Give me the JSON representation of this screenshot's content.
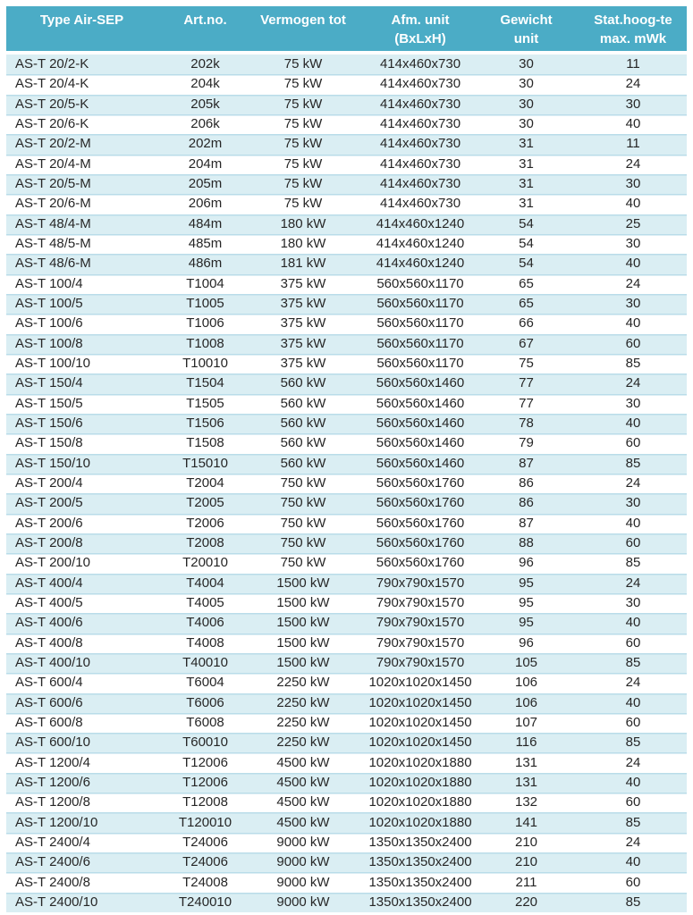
{
  "colors": {
    "header_bg": "#4BACC6",
    "header_text": "#FFFFFF",
    "row_alt_bg": "#DAEEF3",
    "row_bg": "#FFFFFF",
    "border_color": "#B9DCE9",
    "text_color": "#262626"
  },
  "table": {
    "columns": [
      {
        "key": "type",
        "label": "Type Air-SEP"
      },
      {
        "key": "artno",
        "label": "Art.no."
      },
      {
        "key": "vermogen",
        "label": "Vermogen tot"
      },
      {
        "key": "afm",
        "label": "Afm. unit\n(BxLxH)"
      },
      {
        "key": "gewicht",
        "label": "Gewicht unit"
      },
      {
        "key": "stat",
        "label": "Stat.hoog-te\nmax. mWk"
      }
    ],
    "rows": [
      [
        "AS-T 20/2-K",
        "202k",
        "75 kW",
        "414x460x730",
        "30",
        "11"
      ],
      [
        "AS-T 20/4-K",
        "204k",
        "75 kW",
        "414x460x730",
        "30",
        "24"
      ],
      [
        "AS-T 20/5-K",
        "205k",
        "75 kW",
        "414x460x730",
        "30",
        "30"
      ],
      [
        "AS-T 20/6-K",
        "206k",
        "75 kW",
        "414x460x730",
        "30",
        "40"
      ],
      [
        "AS-T 20/2-M",
        "202m",
        "75 kW",
        "414x460x730",
        "31",
        "11"
      ],
      [
        "AS-T 20/4-M",
        "204m",
        "75 kW",
        "414x460x730",
        "31",
        "24"
      ],
      [
        "AS-T 20/5-M",
        "205m",
        "75 kW",
        "414x460x730",
        "31",
        "30"
      ],
      [
        "AS-T 20/6-M",
        "206m",
        "75 kW",
        "414x460x730",
        "31",
        "40"
      ],
      [
        "AS-T 48/4-M",
        "484m",
        "180 kW",
        "414x460x1240",
        "54",
        "25"
      ],
      [
        "AS-T 48/5-M",
        "485m",
        "180 kW",
        "414x460x1240",
        "54",
        "30"
      ],
      [
        "AS-T 48/6-M",
        "486m",
        "181 kW",
        "414x460x1240",
        "54",
        "40"
      ],
      [
        "AS-T 100/4",
        "T1004",
        "375 kW",
        "560x560x1170",
        "65",
        "24"
      ],
      [
        "AS-T 100/5",
        "T1005",
        "375 kW",
        "560x560x1170",
        "65",
        "30"
      ],
      [
        "AS-T 100/6",
        "T1006",
        "375 kW",
        "560x560x1170",
        "66",
        "40"
      ],
      [
        "AS-T 100/8",
        "T1008",
        "375 kW",
        "560x560x1170",
        "67",
        "60"
      ],
      [
        "AS-T 100/10",
        "T10010",
        "375 kW",
        "560x560x1170",
        "75",
        "85"
      ],
      [
        "AS-T 150/4",
        "T1504",
        "560 kW",
        "560x560x1460",
        "77",
        "24"
      ],
      [
        "AS-T 150/5",
        "T1505",
        "560 kW",
        "560x560x1460",
        "77",
        "30"
      ],
      [
        "AS-T 150/6",
        "T1506",
        "560 kW",
        "560x560x1460",
        "78",
        "40"
      ],
      [
        "AS-T 150/8",
        "T1508",
        "560 kW",
        "560x560x1460",
        "79",
        "60"
      ],
      [
        "AS-T 150/10",
        "T15010",
        "560 kW",
        "560x560x1460",
        "87",
        "85"
      ],
      [
        "AS-T 200/4",
        "T2004",
        "750 kW",
        "560x560x1760",
        "86",
        "24"
      ],
      [
        "AS-T 200/5",
        "T2005",
        "750 kW",
        "560x560x1760",
        "86",
        "30"
      ],
      [
        "AS-T 200/6",
        "T2006",
        "750 kW",
        "560x560x1760",
        "87",
        "40"
      ],
      [
        "AS-T 200/8",
        "T2008",
        "750 kW",
        "560x560x1760",
        "88",
        "60"
      ],
      [
        "AS-T 200/10",
        "T20010",
        "750 kW",
        "560x560x1760",
        "96",
        "85"
      ],
      [
        "AS-T 400/4",
        "T4004",
        "1500 kW",
        "790x790x1570",
        "95",
        "24"
      ],
      [
        "AS-T 400/5",
        "T4005",
        "1500 kW",
        "790x790x1570",
        "95",
        "30"
      ],
      [
        "AS-T 400/6",
        "T4006",
        "1500 kW",
        "790x790x1570",
        "95",
        "40"
      ],
      [
        "AS-T 400/8",
        "T4008",
        "1500 kW",
        "790x790x1570",
        "96",
        "60"
      ],
      [
        "AS-T 400/10",
        "T40010",
        "1500 kW",
        "790x790x1570",
        "105",
        "85"
      ],
      [
        "AS-T 600/4",
        "T6004",
        "2250 kW",
        "1020x1020x1450",
        "106",
        "24"
      ],
      [
        "AS-T 600/6",
        "T6006",
        "2250 kW",
        "1020x1020x1450",
        "106",
        "40"
      ],
      [
        "AS-T 600/8",
        "T6008",
        "2250 kW",
        "1020x1020x1450",
        "107",
        "60"
      ],
      [
        "AS-T 600/10",
        "T60010",
        "2250 kW",
        "1020x1020x1450",
        "116",
        "85"
      ],
      [
        "AS-T 1200/4",
        "T12006",
        "4500 kW",
        "1020x1020x1880",
        "131",
        "24"
      ],
      [
        "AS-T 1200/6",
        "T12006",
        "4500 kW",
        "1020x1020x1880",
        "131",
        "40"
      ],
      [
        "AS-T 1200/8",
        "T12008",
        "4500 kW",
        "1020x1020x1880",
        "132",
        "60"
      ],
      [
        "AS-T 1200/10",
        "T120010",
        "4500 kW",
        "1020x1020x1880",
        "141",
        "85"
      ],
      [
        "AS-T 2400/4",
        "T24006",
        "9000 kW",
        "1350x1350x2400",
        "210",
        "24"
      ],
      [
        "AS-T 2400/6",
        "T24006",
        "9000 kW",
        "1350x1350x2400",
        "210",
        "40"
      ],
      [
        "AS-T 2400/8",
        "T24008",
        "9000 kW",
        "1350x1350x2400",
        "211",
        "60"
      ],
      [
        "AS-T 2400/10",
        "T240010",
        "9000 kW",
        "1350x1350x2400",
        "220",
        "85"
      ]
    ]
  }
}
